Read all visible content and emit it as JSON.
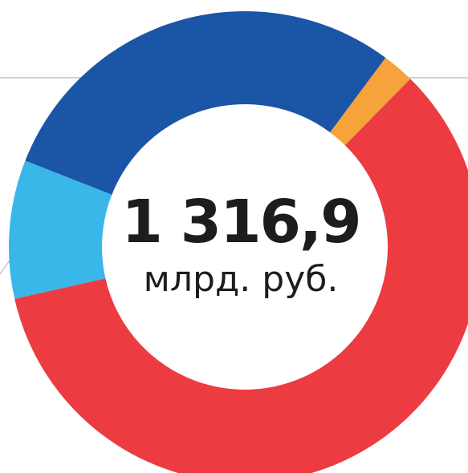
{
  "chart_data": {
    "type": "donut",
    "categories": [
      null,
      null,
      null,
      null
    ],
    "values": [
      2.2,
      59.1,
      9.5,
      29.2
    ],
    "colors": [
      "#f7a33c",
      "#ec3c41",
      "#39b7e8",
      "#1b55a6"
    ],
    "center_value": "1 316,9",
    "center_label": "млрд. руб."
  }
}
